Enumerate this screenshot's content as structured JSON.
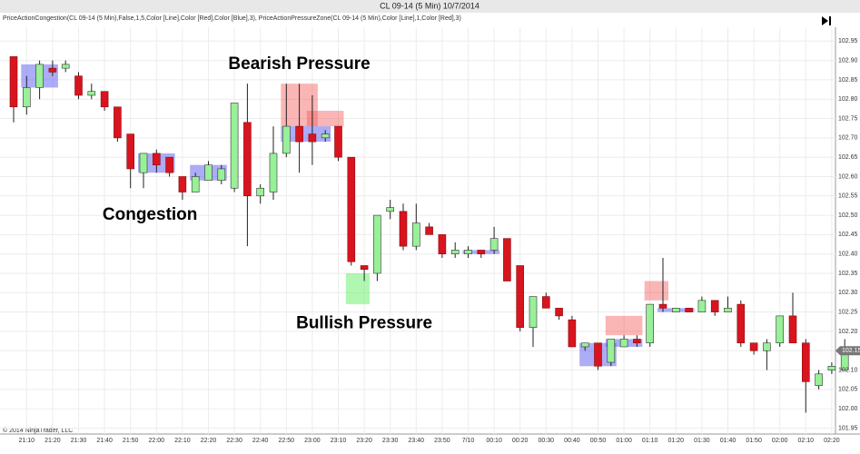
{
  "chart_data": {
    "type": "candlestick",
    "title": "CL 09-14 (5 Min)  10/7/2014",
    "indicator_label": "PriceActionCongestion(CL 09-14 (5 Min),False,1,5,Color [Line],Color [Red],Color [Blue],3), PriceActionPressureZone(CL 09-14 (5 Min),Color [Line],1,Color [Red],3)",
    "copyright": "© 2014 NinjaTrader, LLC",
    "annotations": [
      {
        "text": "Bearish Pressure",
        "x": 22,
        "y": 102.89
      },
      {
        "text": "Congestion",
        "x": 10.5,
        "y": 102.5
      },
      {
        "text": "Bullish Pressure",
        "x": 27,
        "y": 102.22
      }
    ],
    "categories": [
      null,
      "21:10",
      null,
      "21:20",
      null,
      "21:30",
      null,
      "21:40",
      null,
      "21:50",
      null,
      "22:00",
      null,
      "22:10",
      null,
      "22:20",
      null,
      "22:30",
      null,
      "22:40",
      null,
      "22:50",
      null,
      "23:00",
      null,
      "23:10",
      null,
      "23:20",
      null,
      "23:30",
      null,
      "23:40",
      null,
      "23:50",
      null,
      "7/10",
      null,
      "00:10",
      null,
      "00:20",
      null,
      "00:30",
      null,
      "00:40",
      null,
      "00:50",
      null,
      "01:00",
      null,
      "01:10",
      null,
      "01:20",
      null,
      "01:30",
      null,
      "01:40",
      null,
      "01:50",
      null,
      "02:00",
      null,
      "02:10",
      null,
      "02:20",
      null
    ],
    "open": [
      102.91,
      102.78,
      102.83,
      102.88,
      102.88,
      102.86,
      102.81,
      102.82,
      102.78,
      102.71,
      102.61,
      102.66,
      102.65,
      102.6,
      102.56,
      102.59,
      102.59,
      102.57,
      102.74,
      102.55,
      102.56,
      102.66,
      102.73,
      102.71,
      102.7,
      102.73,
      102.65,
      102.37,
      102.35,
      102.51,
      102.51,
      102.42,
      102.47,
      102.45,
      102.4,
      102.4,
      102.41,
      102.41,
      102.44,
      102.37,
      102.21,
      102.29,
      102.26,
      102.23,
      102.16,
      102.17,
      102.12,
      102.16,
      102.18,
      102.17,
      102.27,
      102.25,
      102.26,
      102.25,
      102.28,
      102.25,
      102.27,
      102.17,
      102.15,
      102.17,
      102.24,
      102.17,
      102.06,
      102.1,
      102.1
    ],
    "high": [
      102.91,
      102.86,
      102.9,
      102.9,
      102.9,
      102.87,
      102.84,
      102.82,
      102.78,
      102.71,
      102.66,
      102.67,
      102.65,
      102.6,
      102.61,
      102.64,
      102.63,
      102.79,
      102.84,
      102.58,
      102.73,
      102.84,
      102.84,
      102.81,
      102.72,
      102.73,
      102.65,
      102.37,
      102.5,
      102.54,
      102.53,
      102.53,
      102.48,
      102.45,
      102.43,
      102.42,
      102.41,
      102.47,
      102.44,
      102.37,
      102.29,
      102.3,
      102.26,
      102.24,
      102.17,
      102.17,
      102.18,
      102.19,
      102.19,
      102.27,
      102.39,
      102.26,
      102.26,
      102.29,
      102.28,
      102.29,
      102.28,
      102.17,
      102.18,
      102.24,
      102.3,
      102.18,
      102.1,
      102.12,
      102.18
    ],
    "low": [
      102.74,
      102.76,
      102.8,
      102.86,
      102.87,
      102.8,
      102.8,
      102.77,
      102.69,
      102.57,
      102.57,
      102.61,
      102.6,
      102.54,
      102.56,
      102.59,
      102.58,
      102.56,
      102.42,
      102.53,
      102.54,
      102.65,
      102.61,
      102.63,
      102.69,
      102.64,
      102.37,
      102.33,
      102.33,
      102.49,
      102.41,
      102.41,
      102.45,
      102.39,
      102.39,
      102.39,
      102.39,
      102.4,
      102.33,
      102.2,
      102.16,
      102.26,
      102.23,
      102.16,
      102.15,
      102.1,
      102.11,
      102.16,
      102.16,
      102.16,
      102.25,
      102.25,
      102.25,
      102.25,
      102.24,
      102.25,
      102.16,
      102.14,
      102.1,
      102.16,
      102.17,
      101.99,
      102.05,
      102.09,
      102.1
    ],
    "close": [
      102.78,
      102.83,
      102.89,
      102.87,
      102.89,
      102.81,
      102.82,
      102.78,
      102.7,
      102.62,
      102.66,
      102.63,
      102.61,
      102.56,
      102.6,
      102.63,
      102.62,
      102.79,
      102.55,
      102.57,
      102.66,
      102.73,
      102.69,
      102.69,
      102.71,
      102.65,
      102.38,
      102.36,
      102.5,
      102.52,
      102.42,
      102.48,
      102.45,
      102.4,
      102.41,
      102.41,
      102.4,
      102.44,
      102.33,
      102.21,
      102.29,
      102.26,
      102.24,
      102.16,
      102.17,
      102.11,
      102.18,
      102.18,
      102.17,
      102.27,
      102.26,
      102.26,
      102.25,
      102.28,
      102.25,
      102.26,
      102.17,
      102.15,
      102.17,
      102.24,
      102.17,
      102.07,
      102.09,
      102.11,
      102.15
    ],
    "last_price_label": "102.15",
    "up_color": "#98f098",
    "down_color": "#d8141e",
    "zones": [
      {
        "start": 1,
        "end": 3,
        "low": 102.83,
        "high": 102.89,
        "color": "rgba(90,90,240,0.5)"
      },
      {
        "start": 10,
        "end": 12,
        "low": 102.61,
        "high": 102.66,
        "color": "rgba(90,90,240,0.5)"
      },
      {
        "start": 14,
        "end": 16,
        "low": 102.59,
        "high": 102.63,
        "color": "rgba(90,90,240,0.5)"
      },
      {
        "start": 21,
        "end": 23,
        "low": 102.73,
        "high": 102.84,
        "color": "rgba(245,90,90,0.45)"
      },
      {
        "start": 23,
        "end": 25,
        "low": 102.73,
        "high": 102.77,
        "color": "rgba(245,90,90,0.45)"
      },
      {
        "start": 21,
        "end": 24,
        "low": 102.69,
        "high": 102.73,
        "color": "rgba(90,90,240,0.5)"
      },
      {
        "start": 26,
        "end": 27,
        "low": 102.27,
        "high": 102.35,
        "color": "rgba(100,240,100,0.5)"
      },
      {
        "start": 35,
        "end": 37,
        "low": 102.4,
        "high": 102.41,
        "color": "rgba(90,90,240,0.5)"
      },
      {
        "start": 44,
        "end": 46,
        "low": 102.11,
        "high": 102.17,
        "color": "rgba(90,90,240,0.5)"
      },
      {
        "start": 46,
        "end": 48,
        "low": 102.16,
        "high": 102.18,
        "color": "rgba(90,90,240,0.5)"
      },
      {
        "start": 46,
        "end": 48,
        "low": 102.19,
        "high": 102.24,
        "color": "rgba(245,90,90,0.45)"
      },
      {
        "start": 49,
        "end": 50,
        "low": 102.28,
        "high": 102.33,
        "color": "rgba(245,90,90,0.45)"
      },
      {
        "start": 50,
        "end": 52,
        "low": 102.25,
        "high": 102.26,
        "color": "rgba(90,90,240,0.5)"
      }
    ],
    "ylim": [
      101.93,
      103.0
    ],
    "yticks": [
      101.95,
      {
        "value": 102.0,
        "label": "102.00"
      },
      102.05,
      {
        "value": 102.1,
        "label": "102.10"
      },
      102.15,
      {
        "value": 102.2,
        "label": "102.20"
      },
      102.25,
      {
        "value": 102.3,
        "label": "102.30"
      },
      102.35,
      {
        "value": 102.4,
        "label": "102.40"
      },
      102.45,
      {
        "value": 102.5,
        "label": "102.50"
      },
      102.55,
      {
        "value": 102.6,
        "label": "102.60"
      },
      102.65,
      {
        "value": 102.7,
        "label": "102.70"
      },
      102.75,
      {
        "value": 102.8,
        "label": "102.80"
      },
      102.85,
      {
        "value": 102.9,
        "label": "102.90"
      },
      102.95
    ],
    "grid": true
  }
}
